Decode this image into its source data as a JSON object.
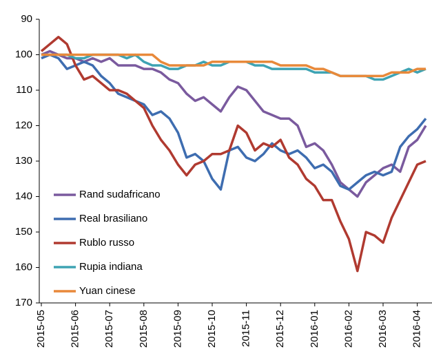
{
  "chart_data": {
    "type": "line",
    "categories": [
      "2015-05",
      null,
      null,
      null,
      "2015-06",
      null,
      null,
      null,
      "2015-07",
      null,
      null,
      null,
      "2015-08",
      null,
      null,
      null,
      "2015-09",
      null,
      null,
      null,
      "2015-10",
      null,
      null,
      null,
      "2015-11",
      null,
      null,
      null,
      "2015-12",
      null,
      null,
      null,
      "2016-01",
      null,
      null,
      null,
      "2016-02",
      null,
      null,
      null,
      "2016-03",
      null,
      null,
      null,
      "2016-04",
      null
    ],
    "series": [
      {
        "name": "Rand sudafricano",
        "color": "#7a5a9e",
        "values": [
          100,
          99,
          100,
          101,
          101,
          102,
          101,
          102,
          101,
          103,
          103,
          103,
          104,
          104,
          105,
          107,
          108,
          111,
          113,
          112,
          114,
          116,
          112,
          109,
          110,
          113,
          116,
          117,
          118,
          118,
          120,
          126,
          125,
          127,
          131,
          136,
          138,
          140,
          136,
          134,
          132,
          131,
          133,
          126,
          124,
          120
        ]
      },
      {
        "name": "Real brasiliano",
        "color": "#3e6db0",
        "values": [
          101,
          100,
          101,
          104,
          103,
          102,
          103,
          106,
          108,
          111,
          112,
          113,
          114,
          117,
          116,
          118,
          122,
          129,
          128,
          130,
          135,
          138,
          127,
          126,
          129,
          130,
          128,
          125,
          127,
          128,
          127,
          129,
          132,
          131,
          133,
          137,
          138,
          136,
          134,
          133,
          134,
          133,
          126,
          123,
          121,
          118
        ]
      },
      {
        "name": "Rublo russo",
        "color": "#b03a30",
        "values": [
          99,
          97,
          95,
          97,
          103,
          107,
          106,
          108,
          110,
          110,
          111,
          113,
          115,
          120,
          124,
          127,
          131,
          134,
          131,
          130,
          128,
          128,
          127,
          120,
          122,
          127,
          125,
          126,
          124,
          129,
          131,
          135,
          137,
          141,
          141,
          147,
          152,
          161,
          150,
          151,
          153,
          146,
          141,
          136,
          131,
          130
        ]
      },
      {
        "name": "Rupia indiana",
        "color": "#3ea3b3",
        "values": [
          100,
          100,
          100,
          100,
          101,
          101,
          100,
          100,
          100,
          100,
          101,
          100,
          102,
          103,
          103,
          104,
          104,
          103,
          103,
          102,
          103,
          103,
          102,
          102,
          102,
          103,
          103,
          104,
          104,
          104,
          104,
          104,
          105,
          105,
          105,
          106,
          106,
          106,
          106,
          107,
          107,
          106,
          105,
          104,
          105,
          104
        ]
      },
      {
        "name": "Yuan cinese",
        "color": "#e8893a",
        "values": [
          100,
          100,
          100,
          100,
          100,
          100,
          100,
          100,
          100,
          100,
          100,
          100,
          100,
          100,
          102,
          103,
          103,
          103,
          103,
          103,
          102,
          102,
          102,
          102,
          102,
          102,
          102,
          102,
          103,
          103,
          103,
          103,
          104,
          104,
          105,
          106,
          106,
          106,
          106,
          106,
          106,
          105,
          105,
          105,
          104,
          104
        ]
      }
    ],
    "ylim": [
      170,
      90
    ],
    "yticks": [
      90,
      100,
      110,
      120,
      130,
      140,
      150,
      160,
      170
    ]
  }
}
